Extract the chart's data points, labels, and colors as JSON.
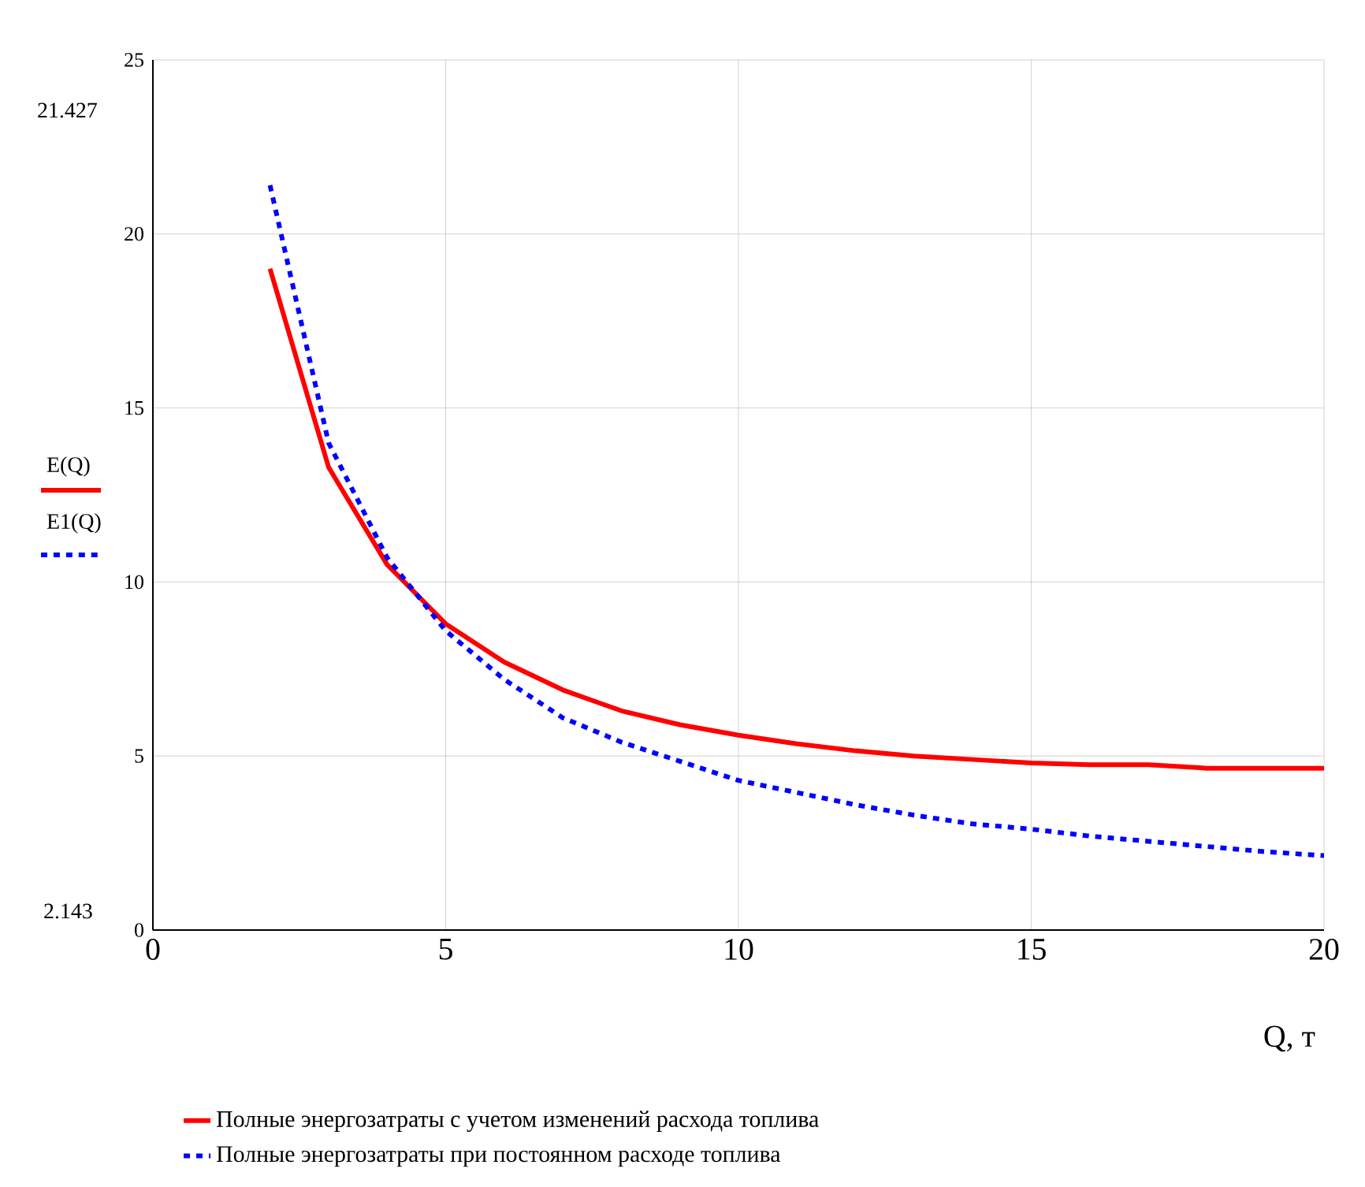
{
  "chart_data": {
    "type": "line",
    "xlabel": "Q, т",
    "annotations": [
      "E(Q)",
      "E1(Q)",
      "21.427",
      "2.143"
    ],
    "x": [
      2,
      3,
      4,
      5,
      6,
      7,
      8,
      9,
      10,
      11,
      12,
      13,
      14,
      15,
      16,
      17,
      18,
      19,
      20
    ],
    "series": [
      {
        "name": "Полные энергозатраты с учетом изменений расхода топлива",
        "color": "#ff0000",
        "line_style": "solid",
        "values": [
          19.0,
          13.3,
          10.5,
          8.8,
          7.7,
          6.9,
          6.3,
          5.9,
          5.6,
          5.35,
          5.15,
          5.0,
          4.9,
          4.8,
          4.75,
          4.75,
          4.65,
          4.65,
          4.65
        ]
      },
      {
        "name": "Полные энергозатраты при постоянном расходе топлива",
        "color": "#0000ff",
        "line_style": "dotted",
        "values": [
          21.4,
          14.0,
          10.7,
          8.6,
          7.2,
          6.1,
          5.4,
          4.85,
          4.3,
          3.95,
          3.6,
          3.3,
          3.05,
          2.9,
          2.7,
          2.55,
          2.4,
          2.25,
          2.14
        ]
      }
    ],
    "xlim": [
      0,
      20
    ],
    "ylim": [
      0,
      25
    ],
    "xticks": [
      0,
      5,
      10,
      15,
      20
    ],
    "yticks": [
      0,
      5,
      10,
      15,
      20,
      25
    ],
    "grid": true,
    "legend": "bottom"
  }
}
